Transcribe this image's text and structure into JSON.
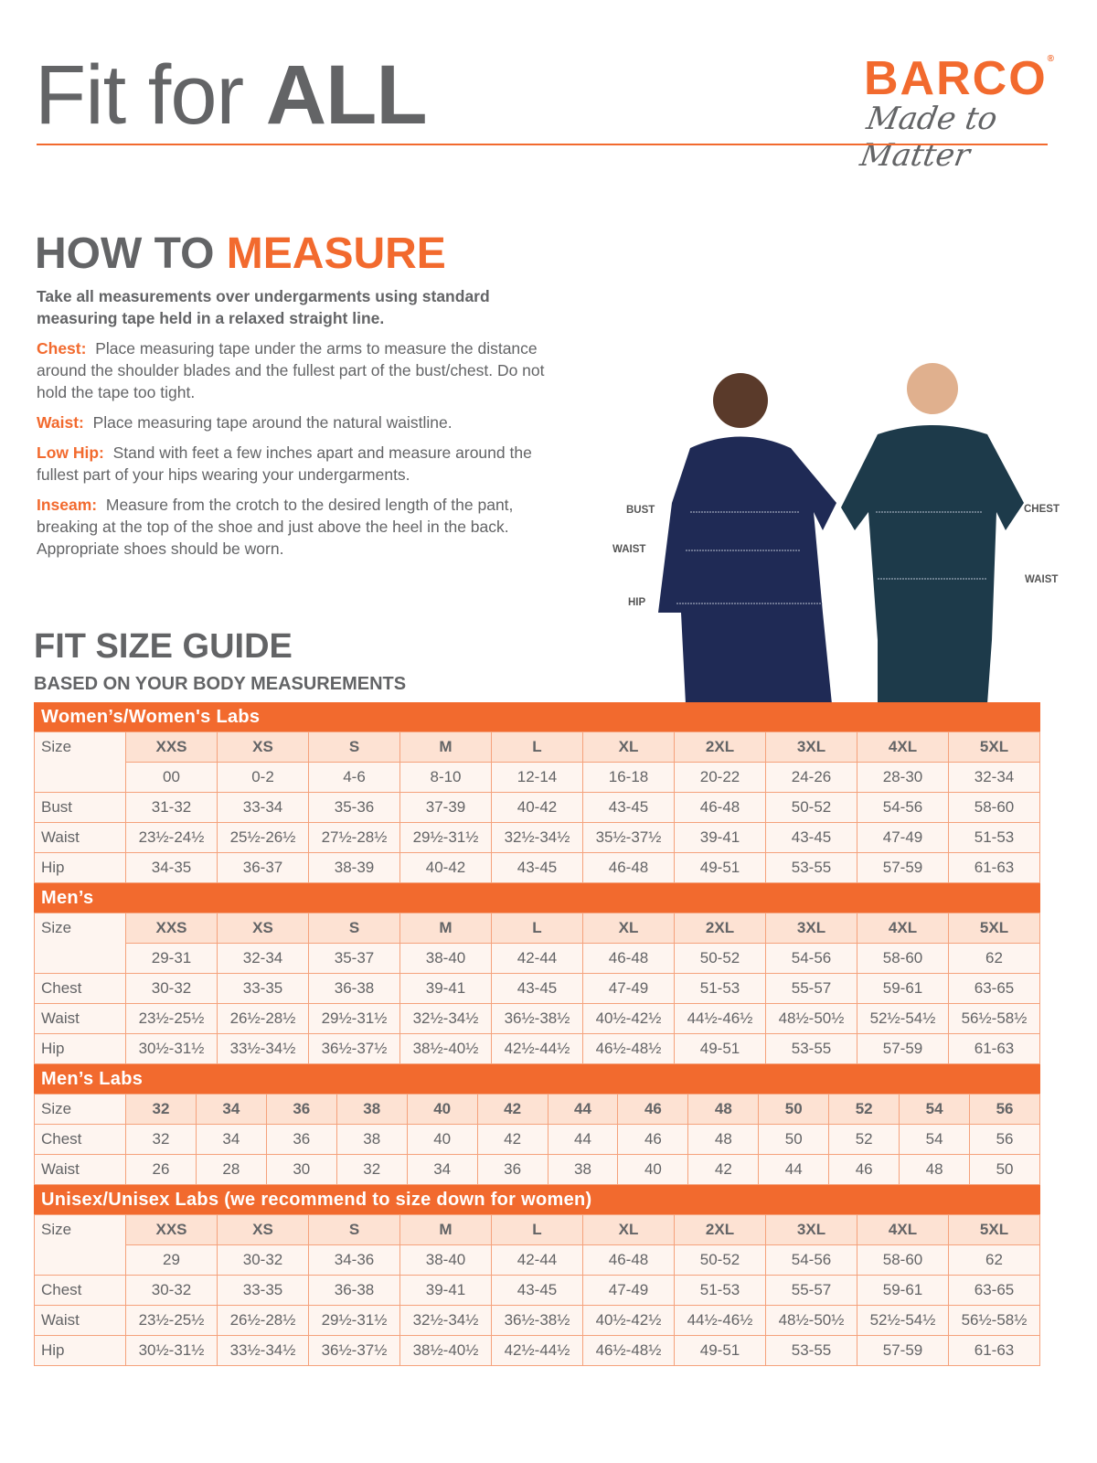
{
  "header": {
    "title_light": "Fit for",
    "title_bold": "ALL",
    "logo_brand": "BARCO",
    "logo_reg": "®",
    "logo_tagline": "Made to Matter"
  },
  "colors": {
    "accent": "#f26a2e",
    "text": "#636466",
    "header_cell": "#fde2d3",
    "cell": "#fef5f0",
    "border": "#f5a27c"
  },
  "measure": {
    "title_a": "HOW TO",
    "title_b": "MEASURE",
    "lead": "Take all measurements over undergarments using standard measuring tape held in a relaxed straight line.",
    "items": [
      {
        "key": "Chest:",
        "text": "Place measuring tape under the arms to measure the distance around the shoulder blades and the fullest part of the bust/chest. Do not hold the tape too tight."
      },
      {
        "key": "Waist:",
        "text": "Place measuring tape around the natural waistline."
      },
      {
        "key": "Low Hip:",
        "text": "Stand with feet a few inches apart and measure around the fullest part of your hips wearing your undergarments."
      },
      {
        "key": "Inseam:",
        "text": "Measure from the crotch to the desired length of the pant, breaking at the top of the shoe and just above the heel in the back. Appropriate shoes should be worn."
      }
    ]
  },
  "figure": {
    "bust": "BUST",
    "waist_w": "WAIST",
    "hip": "HIP",
    "chest": "CHEST",
    "waist_m": "WAIST"
  },
  "guide": {
    "title": "FIT SIZE GUIDE",
    "subtitle": "BASED ON YOUR BODY MEASUREMENTS"
  },
  "tables": [
    {
      "title": "Women’s/Women's Labs",
      "size_label": "Size",
      "sizes": [
        "XXS",
        "XS",
        "S",
        "M",
        "L",
        "XL",
        "2XL",
        "3XL",
        "4XL",
        "5XL"
      ],
      "numeric": [
        "00",
        "0-2",
        "4-6",
        "8-10",
        "12-14",
        "16-18",
        "20-22",
        "24-26",
        "28-30",
        "32-34"
      ],
      "rows": [
        {
          "label": "Bust",
          "values": [
            "31-32",
            "33-34",
            "35-36",
            "37-39",
            "40-42",
            "43-45",
            "46-48",
            "50-52",
            "54-56",
            "58-60"
          ]
        },
        {
          "label": "Waist",
          "values": [
            "23½-24½",
            "25½-26½",
            "27½-28½",
            "29½-31½",
            "32½-34½",
            "35½-37½",
            "39-41",
            "43-45",
            "47-49",
            "51-53"
          ]
        },
        {
          "label": "Hip",
          "values": [
            "34-35",
            "36-37",
            "38-39",
            "40-42",
            "43-45",
            "46-48",
            "49-51",
            "53-55",
            "57-59",
            "61-63"
          ]
        }
      ]
    },
    {
      "title": "Men’s",
      "size_label": "Size",
      "sizes": [
        "XXS",
        "XS",
        "S",
        "M",
        "L",
        "XL",
        "2XL",
        "3XL",
        "4XL",
        "5XL"
      ],
      "numeric": [
        "29-31",
        "32-34",
        "35-37",
        "38-40",
        "42-44",
        "46-48",
        "50-52",
        "54-56",
        "58-60",
        "62"
      ],
      "rows": [
        {
          "label": "Chest",
          "values": [
            "30-32",
            "33-35",
            "36-38",
            "39-41",
            "43-45",
            "47-49",
            "51-53",
            "55-57",
            "59-61",
            "63-65"
          ]
        },
        {
          "label": "Waist",
          "values": [
            "23½-25½",
            "26½-28½",
            "29½-31½",
            "32½-34½",
            "36½-38½",
            "40½-42½",
            "44½-46½",
            "48½-50½",
            "52½-54½",
            "56½-58½"
          ]
        },
        {
          "label": "Hip",
          "values": [
            "30½-31½",
            "33½-34½",
            "36½-37½",
            "38½-40½",
            "42½-44½",
            "46½-48½",
            "49-51",
            "53-55",
            "57-59",
            "61-63"
          ]
        }
      ]
    },
    {
      "title": "Men’s Labs",
      "size_label": "Size",
      "sizes": [
        "32",
        "34",
        "36",
        "38",
        "40",
        "42",
        "44",
        "46",
        "48",
        "50",
        "52",
        "54",
        "56"
      ],
      "rows": [
        {
          "label": "Chest",
          "values": [
            "32",
            "34",
            "36",
            "38",
            "40",
            "42",
            "44",
            "46",
            "48",
            "50",
            "52",
            "54",
            "56"
          ]
        },
        {
          "label": "Waist",
          "values": [
            "26",
            "28",
            "30",
            "32",
            "34",
            "36",
            "38",
            "40",
            "42",
            "44",
            "46",
            "48",
            "50"
          ]
        }
      ]
    },
    {
      "title": "Unisex/Unisex Labs (we recommend to size down for women)",
      "size_label": "Size",
      "sizes": [
        "XXS",
        "XS",
        "S",
        "M",
        "L",
        "XL",
        "2XL",
        "3XL",
        "4XL",
        "5XL"
      ],
      "numeric": [
        "29",
        "30-32",
        "34-36",
        "38-40",
        "42-44",
        "46-48",
        "50-52",
        "54-56",
        "58-60",
        "62"
      ],
      "rows": [
        {
          "label": "Chest",
          "values": [
            "30-32",
            "33-35",
            "36-38",
            "39-41",
            "43-45",
            "47-49",
            "51-53",
            "55-57",
            "59-61",
            "63-65"
          ]
        },
        {
          "label": "Waist",
          "values": [
            "23½-25½",
            "26½-28½",
            "29½-31½",
            "32½-34½",
            "36½-38½",
            "40½-42½",
            "44½-46½",
            "48½-50½",
            "52½-54½",
            "56½-58½"
          ]
        },
        {
          "label": "Hip",
          "values": [
            "30½-31½",
            "33½-34½",
            "36½-37½",
            "38½-40½",
            "42½-44½",
            "46½-48½",
            "49-51",
            "53-55",
            "57-59",
            "61-63"
          ]
        }
      ]
    }
  ]
}
